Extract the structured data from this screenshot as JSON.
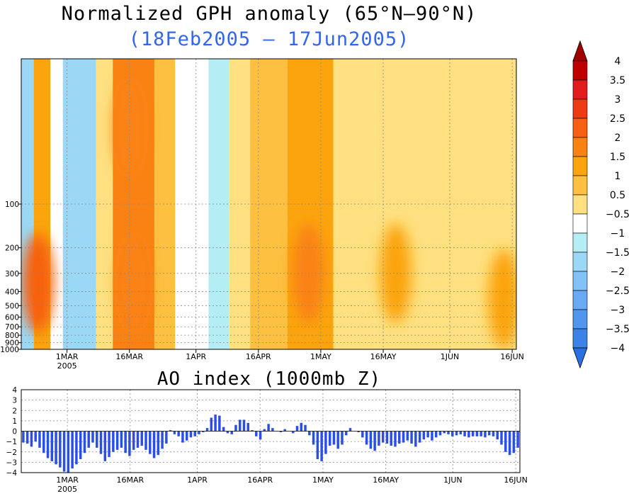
{
  "titles": {
    "main": "Normalized GPH anomaly (65°N–90°N)",
    "subtitle": "(18Feb2005 – 17Jun2005)",
    "ao": "AO index (1000mb Z)"
  },
  "chart_data": [
    {
      "type": "heatmap",
      "title": "Normalized GPH anomaly (65°N–90°N)",
      "subtitle": "(18Feb2005 – 17Jun2005)",
      "x_start": "2005-02-18",
      "x_end": "2005-06-17",
      "x_ticks": [
        {
          "date": "2005-03-01",
          "label": "1MAR",
          "sublabel": "2005"
        },
        {
          "date": "2005-03-16",
          "label": "16MAR"
        },
        {
          "date": "2005-04-01",
          "label": "1APR"
        },
        {
          "date": "2005-04-16",
          "label": "16APR"
        },
        {
          "date": "2005-05-01",
          "label": "1MAY"
        },
        {
          "date": "2005-05-16",
          "label": "16MAY"
        },
        {
          "date": "2005-06-01",
          "label": "1JUN"
        },
        {
          "date": "2005-06-16",
          "label": "16JUN"
        }
      ],
      "y_scale": "log-pressure",
      "y_ticks": [
        "1000",
        "900",
        "800",
        "700",
        "600",
        "500",
        "400",
        "300",
        "200",
        "100"
      ],
      "grid": true,
      "colorbar": {
        "labels": [
          "4",
          "3.5",
          "3",
          "2.5",
          "2",
          "1.5",
          "1",
          "0.5",
          "−0.5",
          "−1",
          "−1.5",
          "−2",
          "−2.5",
          "−3",
          "−3.5",
          "−4"
        ],
        "colors": [
          "#a00000",
          "#c00000",
          "#e21c1c",
          "#f03a14",
          "#f66010",
          "#fa8214",
          "#fba40e",
          "#fec040",
          "#fee080",
          "#ffffff",
          "#b4eef4",
          "#9ad8f6",
          "#82c2f6",
          "#6aaaf4",
          "#5096ee",
          "#3c82e8",
          "#2a70e0"
        ]
      },
      "stripes": [
        {
          "from": "2005-02-18",
          "to": "2005-02-21",
          "value": -1.2
        },
        {
          "from": "2005-02-21",
          "to": "2005-02-25",
          "value": 1.5
        },
        {
          "from": "2005-02-25",
          "to": "2005-02-28",
          "value": 0.2
        },
        {
          "from": "2005-02-28",
          "to": "2005-03-08",
          "value": -1.4
        },
        {
          "from": "2005-03-08",
          "to": "2005-03-12",
          "value": 0.8
        },
        {
          "from": "2005-03-12",
          "to": "2005-03-22",
          "value": 2.2
        },
        {
          "from": "2005-03-22",
          "to": "2005-03-27",
          "value": 1.2
        },
        {
          "from": "2005-03-27",
          "to": "2005-04-04",
          "value": 0.1
        },
        {
          "from": "2005-04-04",
          "to": "2005-04-09",
          "value": -0.8
        },
        {
          "from": "2005-04-09",
          "to": "2005-04-14",
          "value": 0.7
        },
        {
          "from": "2005-04-14",
          "to": "2005-04-23",
          "value": 1.1
        },
        {
          "from": "2005-04-23",
          "to": "2005-05-04",
          "value": 1.6
        },
        {
          "from": "2005-05-04",
          "to": "2005-05-14",
          "value": 0.8
        },
        {
          "from": "2005-05-14",
          "to": "2005-06-17",
          "value": 0.9
        }
      ],
      "blobs": [
        {
          "date": "2005-02-22",
          "pressure_hpa": 350,
          "value": 2.6
        },
        {
          "date": "2005-03-16",
          "pressure_hpa": 30,
          "value": 2.3
        },
        {
          "date": "2005-03-17",
          "pressure_hpa": 350,
          "value": 2.0
        },
        {
          "date": "2005-04-28",
          "pressure_hpa": 300,
          "value": 2.4
        },
        {
          "date": "2005-05-19",
          "pressure_hpa": 300,
          "value": 1.5
        },
        {
          "date": "2005-06-14",
          "pressure_hpa": 450,
          "value": 1.5
        }
      ]
    },
    {
      "type": "bar",
      "title": "AO index (1000mb Z)",
      "ylim": [
        -4,
        4
      ],
      "y_ticks": [
        "4",
        "3",
        "2",
        "1",
        "0",
        "−1",
        "−2",
        "−3",
        "−4"
      ],
      "x_start": "2005-02-18",
      "x_end": "2005-06-17",
      "x_ticks": [
        {
          "date": "2005-03-01",
          "label": "1MAR",
          "sublabel": "2005"
        },
        {
          "date": "2005-03-16",
          "label": "16MAR"
        },
        {
          "date": "2005-04-01",
          "label": "1APR"
        },
        {
          "date": "2005-04-16",
          "label": "16APR"
        },
        {
          "date": "2005-05-01",
          "label": "1MAY"
        },
        {
          "date": "2005-05-16",
          "label": "16MAY"
        },
        {
          "date": "2005-06-01",
          "label": "1JUN"
        },
        {
          "date": "2005-06-16",
          "label": "16JUN"
        }
      ],
      "bar_color": "#2a4ee8",
      "grid": true,
      "values": [
        -1.1,
        -1.2,
        -1.5,
        -1.0,
        -1.6,
        -2.1,
        -2.6,
        -2.9,
        -3.2,
        -3.5,
        -3.9,
        -4.0,
        -3.6,
        -3.2,
        -2.7,
        -2.1,
        -1.6,
        -1.1,
        -1.6,
        -2.2,
        -2.9,
        -2.5,
        -2.0,
        -1.8,
        -1.6,
        -2.1,
        -2.4,
        -1.8,
        -1.6,
        -1.4,
        -1.8,
        -2.2,
        -2.6,
        -2.3,
        -1.7,
        -1.2,
        0.1,
        -0.3,
        -0.5,
        -1.1,
        -0.9,
        -0.6,
        -0.5,
        -0.3,
        -0.1,
        0.3,
        1.3,
        1.6,
        1.5,
        0.4,
        -0.2,
        -0.3,
        0.6,
        1.1,
        1.1,
        0.8,
        0.1,
        -0.5,
        -0.8,
        0.2,
        0.7,
        0.3,
        0.0,
        -0.1,
        0.2,
        0.0,
        -0.2,
        0.5,
        0.8,
        0.6,
        -0.4,
        -1.3,
        -2.7,
        -2.9,
        -2.2,
        -1.4,
        -1.3,
        -1.7,
        -1.3,
        -0.4,
        0.3,
        0.0,
        -0.1,
        -0.6,
        -1.3,
        -1.7,
        -1.9,
        -1.4,
        -1.1,
        -1.2,
        -1.4,
        -1.5,
        -1.2,
        -1.1,
        -0.9,
        -1.2,
        -1.5,
        -1.1,
        -0.8,
        -0.6,
        -0.9,
        -0.6,
        -0.4,
        -0.2,
        -0.3,
        -0.5,
        -0.4,
        -0.3,
        -0.5,
        -0.6,
        -0.5,
        -0.5,
        -0.5,
        -0.6,
        -0.4,
        -0.5,
        -0.8,
        -1.3,
        -2.0,
        -2.3,
        -2.1,
        -1.6
      ]
    }
  ]
}
